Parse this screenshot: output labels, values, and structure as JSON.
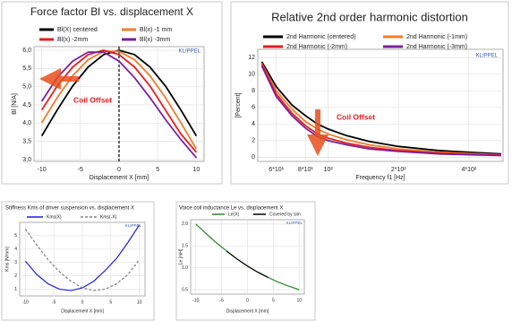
{
  "chart_data": [
    {
      "type": "line",
      "title": "Force factor Bl vs. displacement X",
      "xlabel": "Displacement X [mm]",
      "ylabel": "Bl [N/A]",
      "x": [
        -10,
        -8,
        -6,
        -4,
        -2,
        0,
        2,
        4,
        6,
        8,
        10
      ],
      "series": [
        {
          "name": "Bl(X) centered",
          "color": "#000000",
          "values": [
            3.65,
            4.36,
            5.02,
            5.54,
            5.88,
            6.0,
            5.88,
            5.54,
            5.02,
            4.36,
            3.65
          ]
        },
        {
          "name": "Bl(x) -1 mm",
          "color": "#f07c28",
          "values": [
            4.01,
            4.7,
            5.3,
            5.74,
            5.97,
            5.97,
            5.74,
            5.3,
            4.7,
            4.01,
            3.29
          ]
        },
        {
          "name": "Bl(x) -2mm",
          "color": "#e81c1c",
          "values": [
            4.36,
            5.02,
            5.54,
            5.88,
            6.0,
            5.88,
            5.54,
            5.02,
            4.36,
            3.7,
            3.2
          ]
        },
        {
          "name": "Bl(x) -3mm",
          "color": "#7a1fa0",
          "values": [
            4.6,
            5.25,
            5.7,
            5.95,
            5.95,
            5.7,
            5.25,
            4.7,
            4.1,
            3.55,
            3.05
          ]
        }
      ],
      "xlim": [
        -11,
        11
      ],
      "ylim": [
        2.95,
        6.1
      ],
      "xticks": [
        -10,
        -5,
        0,
        5,
        10
      ],
      "yticks": [
        {
          "value": 3,
          "label": "3,0"
        },
        {
          "value": 3.5,
          "label": "3,5"
        },
        {
          "value": 4,
          "label": "4,0"
        },
        {
          "value": 4.5,
          "label": "4,5"
        },
        {
          "value": 5,
          "label": "5,0"
        },
        {
          "value": 5.5,
          "label": "5,5"
        },
        {
          "value": 6,
          "label": "6,0"
        }
      ],
      "grid": true,
      "annotations": [
        "KLIPPEL",
        "Coil Offset"
      ]
    },
    {
      "type": "line",
      "title": "Relative 2nd order harmonic distortion",
      "xlabel": "Frequency f1 [Hz]",
      "ylabel": "[Percent]",
      "x": [
        52,
        60,
        70,
        80,
        90,
        100,
        120,
        150,
        200,
        300,
        400,
        550
      ],
      "series": [
        {
          "name": "2nd Harmonic (centered)",
          "color": "#000000",
          "values": [
            11.5,
            8.5,
            6.3,
            5.0,
            4.0,
            3.4,
            2.6,
            1.9,
            1.3,
            0.8,
            0.6,
            0.4
          ]
        },
        {
          "name": "2nd Harmonic (-1mm)",
          "color": "#f07c28",
          "values": [
            11.3,
            8.0,
            5.8,
            4.3,
            3.4,
            2.8,
            2.1,
            1.5,
            1.0,
            0.6,
            0.45,
            0.3
          ]
        },
        {
          "name": "2nd Harmonic (-2mm)",
          "color": "#e81c1c",
          "values": [
            11.2,
            7.6,
            5.3,
            3.8,
            2.8,
            2.3,
            1.7,
            1.2,
            0.8,
            0.5,
            0.35,
            0.25
          ]
        },
        {
          "name": "2nd Harmonic (-3mm)",
          "color": "#7a1fa0",
          "values": [
            11.0,
            7.3,
            5.0,
            3.5,
            2.5,
            2.0,
            1.5,
            1.0,
            0.7,
            0.4,
            0.3,
            0.2
          ]
        }
      ],
      "xscale": "log",
      "xlim": [
        50,
        560
      ],
      "ylim": [
        -0.5,
        13
      ],
      "xticks": [
        {
          "value": 60,
          "label": "6*10¹"
        },
        {
          "value": 80,
          "label": "8*10¹"
        },
        {
          "value": 100,
          "label": "10²"
        },
        {
          "value": 200,
          "label": "2*10²"
        },
        {
          "value": 400,
          "label": "4*10²"
        }
      ],
      "yticks": [
        0,
        2,
        4,
        6,
        8,
        10,
        12
      ],
      "grid": true,
      "annotations": [
        "KLIPPEL",
        "Coil Offset"
      ]
    },
    {
      "type": "line",
      "title": "Stiffness Kms of driver suspension  vs. displacement X",
      "xlabel": "Displacement X [mm]",
      "ylabel": "Kms [N/mm]",
      "x": [
        -10,
        -8,
        -6,
        -4,
        -2,
        0,
        2,
        4,
        6,
        8,
        10
      ],
      "series": [
        {
          "name": "Kms(X)",
          "color": "#2020e0",
          "values": [
            3.1,
            2.1,
            1.4,
            1.0,
            0.9,
            1.1,
            1.6,
            2.4,
            3.3,
            4.5,
            5.8
          ]
        },
        {
          "name": "Kms(-X)",
          "color": "#808080",
          "style": "dashed",
          "values": [
            5.5,
            4.3,
            3.2,
            2.3,
            1.6,
            1.1,
            0.9,
            1.0,
            1.4,
            2.1,
            3.2
          ]
        }
      ],
      "xlim": [
        -11,
        11
      ],
      "ylim": [
        0.5,
        6
      ],
      "xticks": [
        -10,
        -5,
        0,
        5,
        10
      ],
      "yticks": [
        1,
        2,
        3,
        4,
        5
      ],
      "grid": true,
      "annotations": [
        "KLIPPEL"
      ]
    },
    {
      "type": "line",
      "title": "Voice coil inductance Le vs. displacement X",
      "xlabel": "Displacement X [mm]",
      "ylabel": "Le [mH]",
      "x": [
        -10,
        -8,
        -6,
        -4,
        -2,
        0,
        2,
        4,
        6,
        8,
        10
      ],
      "series": [
        {
          "name": "Le(X)",
          "color": "#2a8a2a",
          "values": [
            2.0,
            1.78,
            1.57,
            1.38,
            1.2,
            1.04,
            0.9,
            0.78,
            0.67,
            0.58,
            0.5
          ]
        },
        {
          "name": "Covered by sim",
          "color": "#000000",
          "values": [
            null,
            null,
            null,
            1.38,
            1.2,
            1.04,
            0.9,
            0.78,
            null,
            null,
            null
          ]
        }
      ],
      "xlim": [
        -11,
        11
      ],
      "ylim": [
        0.4,
        2.1
      ],
      "xticks": [
        -10,
        -5,
        0,
        5,
        10
      ],
      "yticks": [
        {
          "value": 0.5,
          "label": "0.5"
        },
        {
          "value": 1,
          "label": "1.0"
        },
        {
          "value": 1.5,
          "label": "1.5"
        },
        {
          "value": 2,
          "label": "2.0"
        }
      ],
      "grid": true,
      "annotations": [
        "KLIPPEL"
      ]
    }
  ]
}
